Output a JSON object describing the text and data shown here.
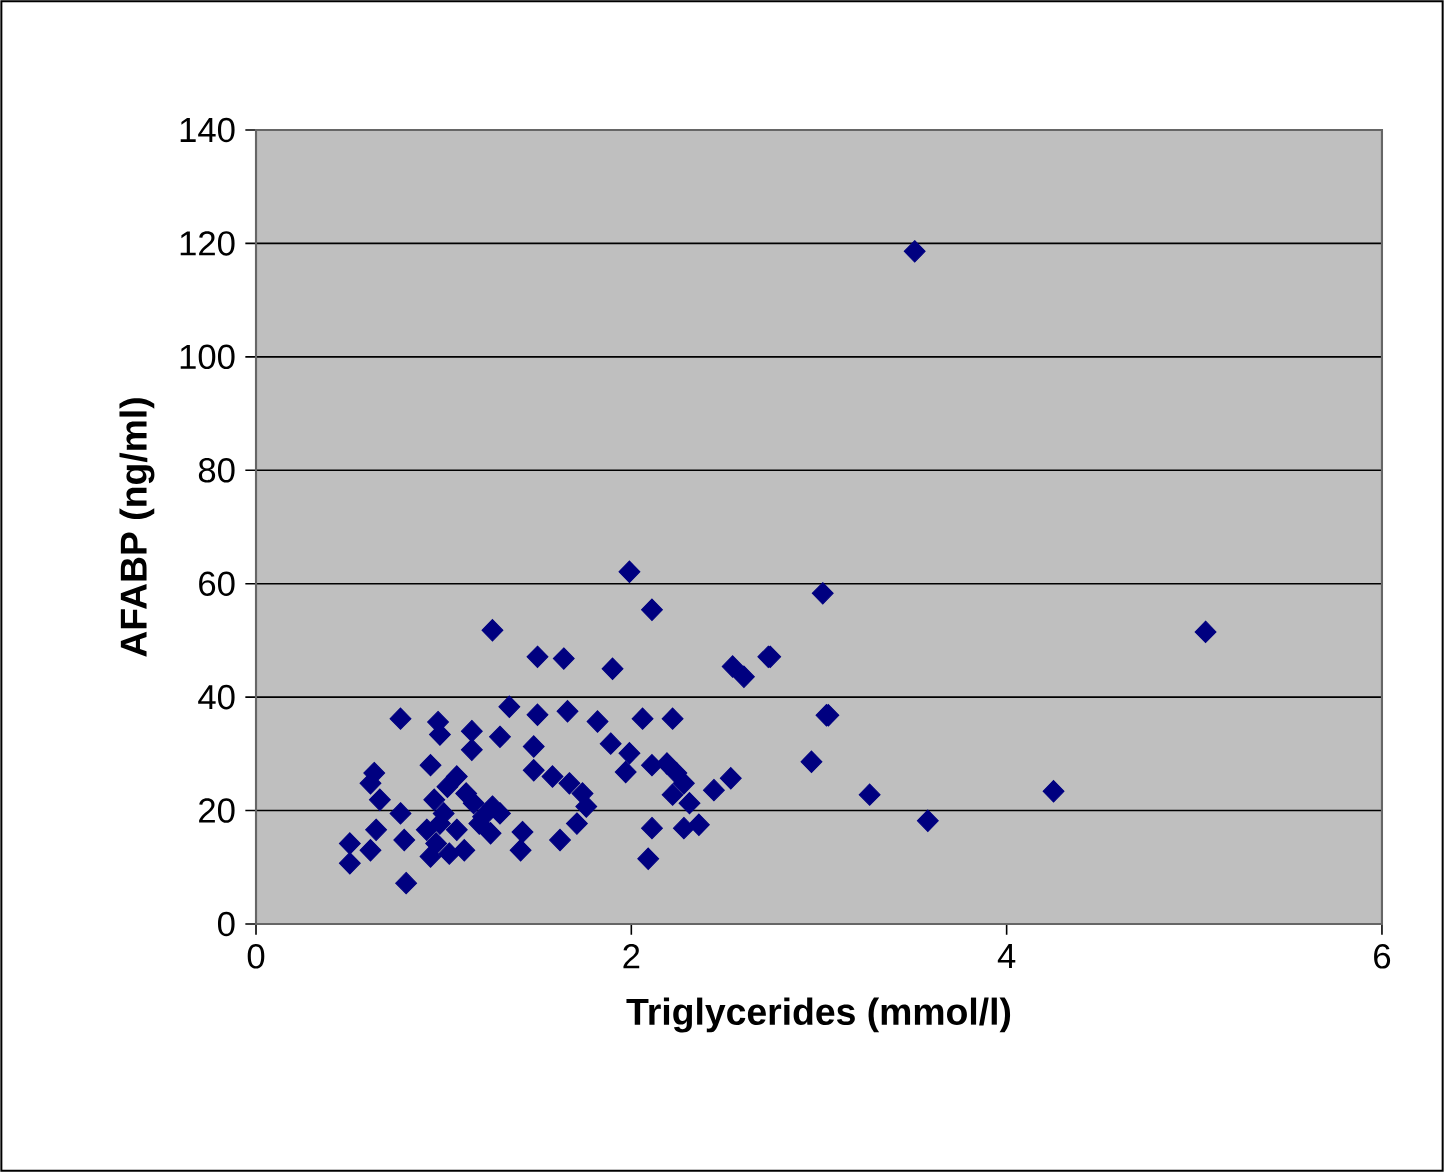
{
  "chart_data": {
    "type": "scatter",
    "xlabel": "Triglycerides (mmol/l)",
    "ylabel": "AFABP (ng/ml)",
    "xlim": [
      0,
      6
    ],
    "ylim": [
      0,
      140
    ],
    "xticks": [
      0,
      2,
      4,
      6
    ],
    "yticks": [
      0,
      20,
      40,
      60,
      80,
      100,
      120,
      140
    ],
    "grid": "y",
    "marker": "diamond",
    "x": [
      3.51,
      3.02,
      2.74,
      3.04,
      2.96,
      3.27,
      3.58,
      4.25,
      5.06,
      2.11,
      2.54,
      2.6,
      2.73,
      3.05,
      2.06,
      2.22,
      2.11,
      2.19,
      2.24,
      2.28,
      2.22,
      2.31,
      2.44,
      2.53,
      2.11,
      2.28,
      2.36,
      2.09,
      1.99,
      1.26,
      1.5,
      1.64,
      1.9,
      0.77,
      1.35,
      1.5,
      1.66,
      0.97,
      0.98,
      1.15,
      1.3,
      1.15,
      1.82,
      1.89,
      1.99,
      1.97,
      1.48,
      0.93,
      0.63,
      0.61,
      1.07,
      1.48,
      1.58,
      1.67,
      1.74,
      1.76,
      1.71,
      0.66,
      0.77,
      0.64,
      0.5,
      0.5,
      0.61,
      0.79,
      0.95,
      1.0,
      1.16,
      1.26,
      1.3,
      0.91,
      0.96,
      1.07,
      0.93,
      1.03,
      0.8,
      1.11,
      1.19,
      1.25,
      1.42,
      1.41,
      1.62,
      1.02,
      1.12,
      1.21,
      0.98
    ],
    "values": [
      118.6,
      58.3,
      47.1,
      36.8,
      28.6,
      22.8,
      18.2,
      23.4,
      51.5,
      55.4,
      45.4,
      43.6,
      47.1,
      36.8,
      36.2,
      36.2,
      28.0,
      28.3,
      26.6,
      24.8,
      22.8,
      21.3,
      23.6,
      25.7,
      16.9,
      16.9,
      17.5,
      11.5,
      62.1,
      51.8,
      47.1,
      46.8,
      45.0,
      36.2,
      38.3,
      36.9,
      37.5,
      35.6,
      33.4,
      34.0,
      33.0,
      30.7,
      35.7,
      31.8,
      30.1,
      26.8,
      31.3,
      28.0,
      26.6,
      24.8,
      26.0,
      27.1,
      26.0,
      24.8,
      23.0,
      20.7,
      17.7,
      21.9,
      19.5,
      16.6,
      14.2,
      10.7,
      13.0,
      14.8,
      21.9,
      19.5,
      21.3,
      20.7,
      19.5,
      16.6,
      14.2,
      16.6,
      11.9,
      12.4,
      7.2,
      13.0,
      17.7,
      16.0,
      16.2,
      13.0,
      14.8,
      24.2,
      23.0,
      18.9,
      17.7
    ],
    "color": "#000080"
  }
}
